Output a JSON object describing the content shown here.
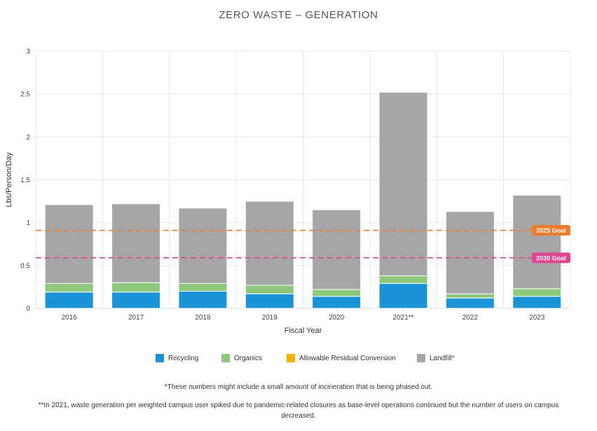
{
  "chart_data": {
    "type": "bar",
    "stacked": true,
    "title": "ZERO WASTE – GENERATION",
    "xlabel": "Fiscal Year",
    "ylabel": "Lbs/Person/Day",
    "ylim": [
      0,
      3
    ],
    "yticks": [
      "0",
      "0.5",
      "1",
      "1.5",
      "2",
      "2.5",
      "3"
    ],
    "grid": true,
    "categories": [
      "2016",
      "2017",
      "2018",
      "2019",
      "2020",
      "2021**",
      "2022",
      "2023"
    ],
    "series": [
      {
        "name": "Recycling",
        "color": "#1a93d8",
        "values": [
          0.19,
          0.19,
          0.2,
          0.17,
          0.14,
          0.29,
          0.12,
          0.14
        ]
      },
      {
        "name": "Organics",
        "color": "#8cc97c",
        "values": [
          0.1,
          0.11,
          0.09,
          0.1,
          0.08,
          0.09,
          0.05,
          0.09
        ]
      },
      {
        "name": "Allowable Residual Conversion",
        "color": "#f7b200",
        "values": [
          0,
          0,
          0,
          0,
          0,
          0,
          0,
          0
        ]
      },
      {
        "name": "Landfill*",
        "color": "#a6a6a6",
        "values": [
          0.92,
          0.92,
          0.88,
          0.98,
          0.93,
          2.14,
          0.96,
          1.09
        ]
      }
    ],
    "goals": [
      {
        "label": "2025 Goal",
        "value": 0.91,
        "color": "#f07a2a"
      },
      {
        "label": "2030 Goal",
        "value": 0.59,
        "color": "#e0458f"
      }
    ]
  },
  "footnotes": {
    "note1": "*These numbers might include a small amount of incineration that is being phased out.",
    "note2": "**In 2021, waste generation per weighted campus user spiked due to pandemic-related closures as base-level operations continued but the number of users on campus decreased."
  }
}
